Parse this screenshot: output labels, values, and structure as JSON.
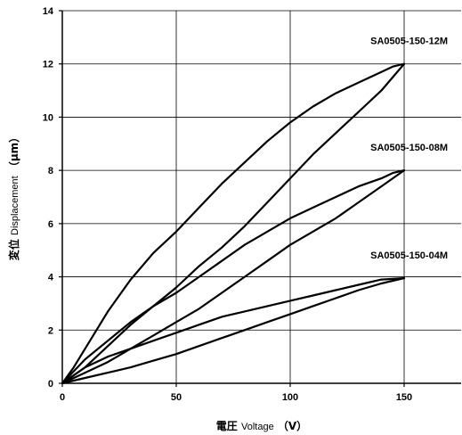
{
  "chart_data": {
    "type": "line",
    "xlabel_cn": "電圧",
    "xlabel_en": "Voltage",
    "xlabel_unit": "（V）",
    "ylabel_cn": "変位",
    "ylabel_en": "Displacement",
    "ylabel_unit": "（μm）",
    "xlim": [
      0,
      175
    ],
    "ylim": [
      0,
      14
    ],
    "x_ticks": [
      0,
      50,
      100,
      150
    ],
    "y_ticks": [
      0,
      2,
      4,
      6,
      8,
      10,
      12,
      14
    ],
    "grid": true,
    "series": [
      {
        "name": "SA0505-150-12M",
        "upper": {
          "x": [
            0,
            5,
            10,
            20,
            30,
            40,
            50,
            60,
            70,
            80,
            90,
            100,
            110,
            120,
            130,
            140,
            145,
            150
          ],
          "y": [
            0,
            0.6,
            1.3,
            2.7,
            3.9,
            4.9,
            5.7,
            6.6,
            7.5,
            8.3,
            9.1,
            9.8,
            10.4,
            10.9,
            11.3,
            11.7,
            11.9,
            12.0
          ]
        },
        "lower": {
          "x": [
            0,
            10,
            20,
            30,
            40,
            50,
            60,
            70,
            80,
            90,
            100,
            110,
            120,
            130,
            140,
            145,
            150
          ],
          "y": [
            0,
            0.6,
            1.4,
            2.2,
            2.9,
            3.6,
            4.4,
            5.1,
            5.9,
            6.8,
            7.7,
            8.6,
            9.4,
            10.2,
            11.0,
            11.5,
            12.0
          ]
        }
      },
      {
        "name": "SA0505-150-08M",
        "upper": {
          "x": [
            0,
            10,
            20,
            30,
            40,
            50,
            60,
            70,
            80,
            90,
            100,
            110,
            120,
            130,
            140,
            145,
            150
          ],
          "y": [
            0,
            0.9,
            1.6,
            2.3,
            2.9,
            3.4,
            4.0,
            4.6,
            5.2,
            5.7,
            6.2,
            6.6,
            7.0,
            7.4,
            7.7,
            7.9,
            8.0
          ]
        },
        "lower": {
          "x": [
            0,
            10,
            20,
            30,
            40,
            50,
            60,
            70,
            80,
            90,
            100,
            110,
            120,
            130,
            140,
            145,
            150
          ],
          "y": [
            0,
            0.4,
            0.8,
            1.3,
            1.8,
            2.3,
            2.8,
            3.4,
            4.0,
            4.6,
            5.2,
            5.7,
            6.2,
            6.8,
            7.4,
            7.7,
            8.0
          ]
        }
      },
      {
        "name": "SA0505-150-04M",
        "upper": {
          "x": [
            0,
            10,
            20,
            30,
            40,
            50,
            60,
            70,
            80,
            90,
            100,
            110,
            120,
            130,
            140,
            150
          ],
          "y": [
            0,
            0.6,
            1.0,
            1.3,
            1.6,
            1.9,
            2.2,
            2.5,
            2.7,
            2.9,
            3.1,
            3.3,
            3.5,
            3.7,
            3.9,
            3.95
          ]
        },
        "lower": {
          "x": [
            0,
            10,
            20,
            30,
            40,
            50,
            60,
            70,
            80,
            90,
            100,
            110,
            120,
            130,
            140,
            150
          ],
          "y": [
            0,
            0.2,
            0.4,
            0.6,
            0.85,
            1.1,
            1.4,
            1.7,
            2.0,
            2.3,
            2.6,
            2.9,
            3.2,
            3.5,
            3.75,
            3.95
          ]
        }
      }
    ]
  }
}
